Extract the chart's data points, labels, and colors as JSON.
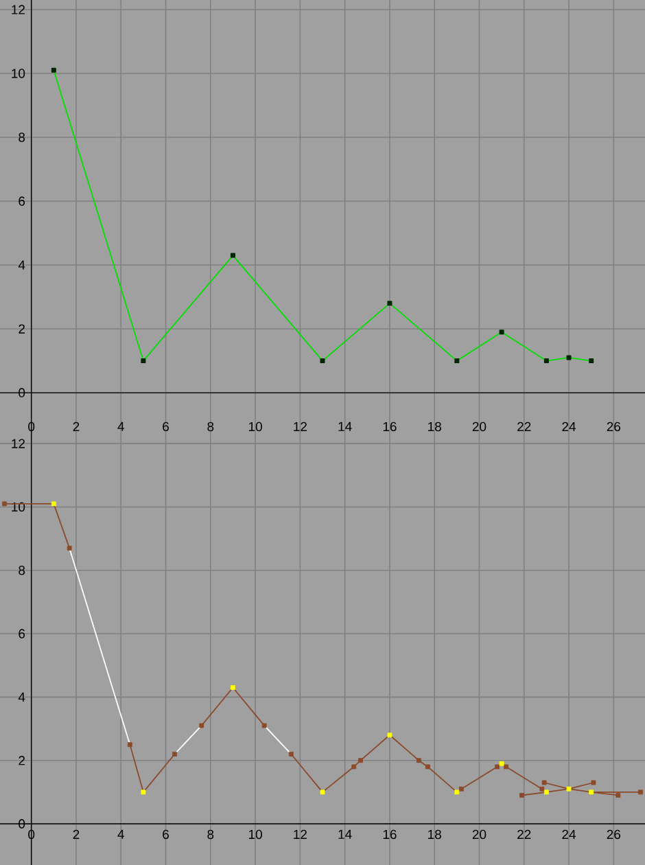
{
  "chart_data": [
    {
      "type": "line",
      "x": [
        1,
        5,
        9,
        13,
        16,
        19,
        21,
        23,
        24,
        25
      ],
      "values": [
        10.1,
        1,
        4.3,
        1,
        2.8,
        1,
        1.9,
        1,
        1.1,
        1
      ],
      "color": "#00e000",
      "marker": "square",
      "line_style": "solid",
      "xlim": [
        -1.4,
        27.4
      ],
      "ylim": [
        -0.6,
        12.3
      ],
      "xticks": [
        0,
        2,
        4,
        6,
        8,
        10,
        12,
        14,
        16,
        18,
        20,
        22,
        24,
        26
      ],
      "yticks": [
        0,
        2,
        4,
        6,
        8,
        10,
        12
      ],
      "grid": true,
      "tick_labels": "y"
    },
    {
      "type": "line",
      "xlim": [
        -1.4,
        27.4
      ],
      "ylim": [
        -1.3,
        13
      ],
      "xticks": [
        0,
        2,
        4,
        6,
        8,
        10,
        12,
        14,
        16,
        18,
        20,
        22,
        24,
        26
      ],
      "x2lim": [
        -1.4,
        27.4
      ],
      "x2ticks": [
        0,
        2,
        4,
        6,
        8,
        10,
        12,
        14,
        16,
        18,
        20,
        22,
        24,
        26
      ],
      "yticks": [
        0,
        2,
        4,
        6,
        8,
        10,
        12
      ],
      "grid": true,
      "series": [
        {
          "type": "line",
          "color": "#8b4a2b",
          "marker": "none",
          "x": [
            -1.2,
            1,
            1.7,
            null,
            4.4,
            5,
            6.4,
            null,
            7.6,
            9,
            10.4,
            null,
            11.6,
            13,
            14.4,
            14.7,
            16,
            17.3,
            17.7,
            19,
            19.2,
            20.8,
            21,
            21.2,
            22.8,
            23,
            null,
            21.9,
            23,
            24,
            25.1,
            null,
            22.9,
            24,
            25,
            26.2,
            null,
            25,
            27.2
          ],
          "values": [
            10.1,
            10.1,
            8.7,
            null,
            2.5,
            1,
            2.2,
            null,
            3.1,
            4.3,
            3.1,
            null,
            2.2,
            1,
            1.8,
            2,
            2.8,
            2,
            1.8,
            1,
            1.1,
            1.8,
            1.9,
            1.8,
            1.1,
            1,
            null,
            0.9,
            1,
            1.1,
            1.3,
            null,
            1.3,
            1.1,
            1,
            0.9,
            null,
            1,
            1
          ]
        },
        {
          "type": "line",
          "color": "#ffffff",
          "marker": "none",
          "x": [
            1.7,
            4.4,
            null,
            6.4,
            7.6,
            null,
            10.4,
            11.6
          ],
          "values": [
            8.7,
            2.5,
            null,
            2.2,
            3.1,
            null,
            3.1,
            2.2
          ]
        },
        {
          "type": "scatter",
          "color": "#8b4a2b",
          "marker": "square",
          "x": [
            -1.2,
            1.7,
            4.4,
            6.4,
            7.6,
            10.4,
            11.6,
            14.4,
            14.7,
            17.3,
            17.7,
            19.2,
            20.8,
            21.2,
            22.8,
            21.9,
            22.9,
            25.1,
            26.2,
            27.2
          ],
          "values": [
            10.1,
            8.7,
            2.5,
            2.2,
            3.1,
            3.1,
            2.2,
            1.8,
            2,
            2,
            1.8,
            1.1,
            1.8,
            1.8,
            1.1,
            0.9,
            1.3,
            1.3,
            0.9,
            1
          ]
        },
        {
          "type": "scatter",
          "color": "#ffff00",
          "marker": "square",
          "x": [
            1,
            5,
            9,
            13,
            16,
            19,
            21,
            23,
            24,
            25
          ],
          "values": [
            10.1,
            1,
            4.3,
            1,
            2.8,
            1,
            1.9,
            1,
            1.1,
            1
          ]
        }
      ]
    }
  ]
}
